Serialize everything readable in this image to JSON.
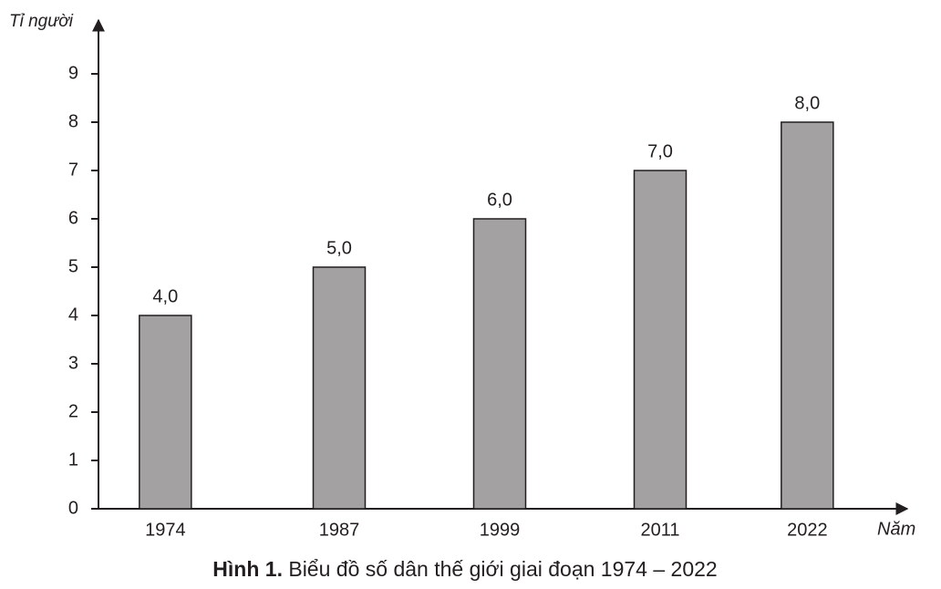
{
  "chart_data": {
    "type": "bar",
    "caption_label": "Hình 1.",
    "title": "Biểu đồ số dân thế giới giai đoạn 1974 – 2022",
    "ylabel": "Tỉ người",
    "xlabel": "Năm",
    "x": [
      1974,
      1987,
      1999,
      2011,
      2022
    ],
    "xlim": [
      1969,
      2029
    ],
    "values": [
      4,
      5,
      6,
      7,
      8
    ],
    "value_labels": [
      "4,0",
      "5,0",
      "6,0",
      "7,0",
      "8,0"
    ],
    "color": "#a3a1a2",
    "ylim": [
      0,
      10
    ],
    "yticks": [
      0,
      1,
      2,
      3,
      4,
      5,
      6,
      7,
      8,
      9
    ],
    "grid": false
  }
}
